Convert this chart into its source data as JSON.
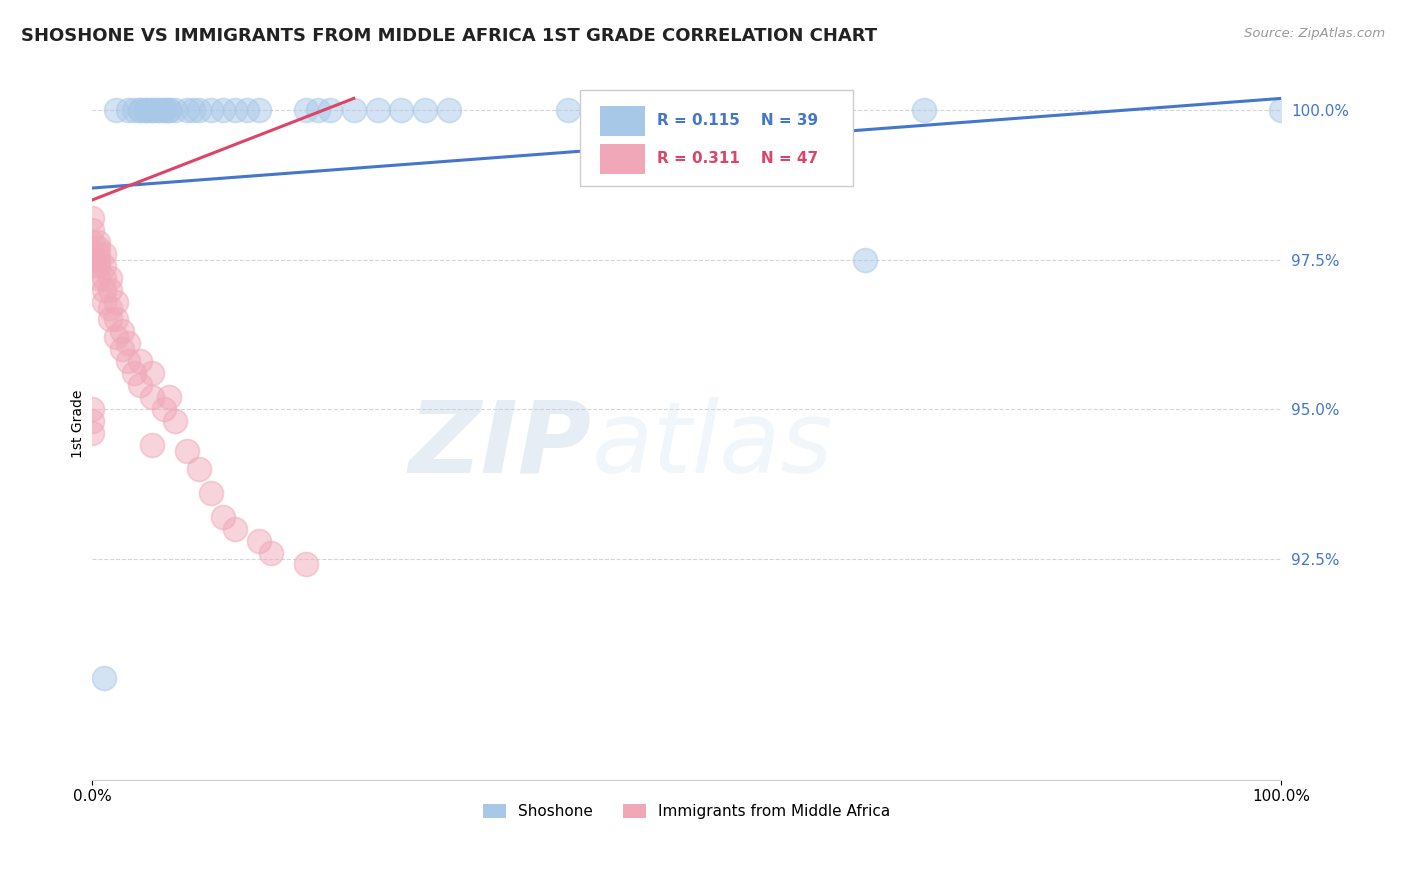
{
  "title": "SHOSHONE VS IMMIGRANTS FROM MIDDLE AFRICA 1ST GRADE CORRELATION CHART",
  "source_text": "Source: ZipAtlas.com",
  "ylabel": "1st Grade",
  "xlim": [
    0.0,
    1.0
  ],
  "ylim": [
    0.888,
    1.007
  ],
  "yticks": [
    0.925,
    0.95,
    0.975,
    1.0
  ],
  "ytick_labels": [
    "92.5%",
    "95.0%",
    "97.5%",
    "100.0%"
  ],
  "xticks": [
    0.0,
    1.0
  ],
  "xtick_labels": [
    "0.0%",
    "100.0%"
  ],
  "legend_labels": [
    "Shoshone",
    "Immigrants from Middle Africa"
  ],
  "r_blue": 0.115,
  "n_blue": 39,
  "r_pink": 0.311,
  "n_pink": 47,
  "blue_color": "#a8c8e8",
  "pink_color": "#f0a8b8",
  "blue_line_color": "#4477cc",
  "pink_line_color": "#dd4466",
  "watermark_zip": "ZIP",
  "watermark_atlas": "atlas",
  "blue_x": [
    0.02,
    0.03,
    0.035,
    0.04,
    0.04,
    0.045,
    0.045,
    0.05,
    0.05,
    0.055,
    0.055,
    0.06,
    0.06,
    0.065,
    0.065,
    0.07,
    0.08,
    0.085,
    0.09,
    0.1,
    0.11,
    0.12,
    0.13,
    0.14,
    0.18,
    0.19,
    0.2,
    0.22,
    0.24,
    0.26,
    0.28,
    0.3,
    0.4,
    0.42,
    0.5,
    0.65,
    0.7,
    1.0,
    0.01
  ],
  "blue_y": [
    1.0,
    1.0,
    1.0,
    1.0,
    1.0,
    1.0,
    1.0,
    1.0,
    1.0,
    1.0,
    1.0,
    1.0,
    1.0,
    1.0,
    1.0,
    1.0,
    1.0,
    1.0,
    1.0,
    1.0,
    1.0,
    1.0,
    1.0,
    1.0,
    1.0,
    1.0,
    1.0,
    1.0,
    1.0,
    1.0,
    1.0,
    1.0,
    1.0,
    1.0,
    1.0,
    0.975,
    1.0,
    1.0,
    0.905
  ],
  "pink_x": [
    0.0,
    0.0,
    0.0,
    0.0,
    0.0,
    0.005,
    0.005,
    0.005,
    0.005,
    0.005,
    0.005,
    0.01,
    0.01,
    0.01,
    0.01,
    0.01,
    0.015,
    0.015,
    0.015,
    0.015,
    0.02,
    0.02,
    0.02,
    0.025,
    0.025,
    0.03,
    0.03,
    0.035,
    0.04,
    0.04,
    0.05,
    0.05,
    0.06,
    0.065,
    0.07,
    0.08,
    0.09,
    0.1,
    0.11,
    0.12,
    0.14,
    0.15,
    0.18,
    0.0,
    0.0,
    0.0,
    0.05
  ],
  "pink_y": [
    0.975,
    0.975,
    0.978,
    0.98,
    0.982,
    0.972,
    0.974,
    0.975,
    0.976,
    0.977,
    0.978,
    0.968,
    0.97,
    0.972,
    0.974,
    0.976,
    0.965,
    0.967,
    0.97,
    0.972,
    0.962,
    0.965,
    0.968,
    0.96,
    0.963,
    0.958,
    0.961,
    0.956,
    0.954,
    0.958,
    0.952,
    0.956,
    0.95,
    0.952,
    0.948,
    0.943,
    0.94,
    0.936,
    0.932,
    0.93,
    0.928,
    0.926,
    0.924,
    0.95,
    0.948,
    0.946,
    0.944
  ],
  "blue_trend_x": [
    0.0,
    1.0
  ],
  "blue_trend_y": [
    0.987,
    1.002
  ],
  "pink_trend_x": [
    0.0,
    0.22
  ],
  "pink_trend_y": [
    0.985,
    1.002
  ]
}
